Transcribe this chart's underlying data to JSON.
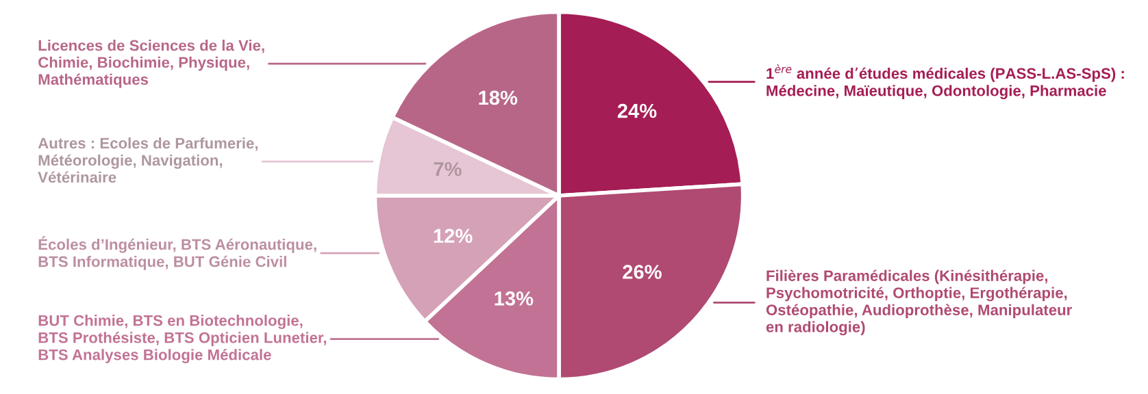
{
  "chart_data": {
    "type": "pie",
    "categories": [
      "1$^{ère}$ année d’études médicales (PASS-L.AS-SpS) :\nMédecine, Maïeutique, Odontologie, Pharmacie",
      "Filières Paramédicales (Kinésithérapie,\nPsychomotricité, Orthoptie, Ergothérapie,\nOstéopathie, Audioprothèse, Manipulateur\nen radiologie)",
      "BUT Chimie, BTS en Biotechnologie,\nBTS Prothésiste, BTS Opticien Lunetier,\nBTS Analyses Biologie Médicale",
      "Écoles d’Ingénieur, BTS Aéronautique,\nBTS Informatique, BUT Génie Civil",
      "Autres : Ecoles de Parfumerie,\nMétéorologie, Navigation,\nVétérinaire",
      "Licences de Sciences de la Vie,\nChimie, Biochimie, Physique,\nMathématiques"
    ],
    "values": [
      24,
      26,
      13,
      12,
      7,
      18
    ],
    "value_labels": [
      "24%",
      "26%",
      "13%",
      "12%",
      "7%",
      "18%"
    ],
    "colors": [
      "#a51d55",
      "#b04a72",
      "#c27294",
      "#d4a1b7",
      "#e6c6d4",
      "#b86688"
    ]
  }
}
